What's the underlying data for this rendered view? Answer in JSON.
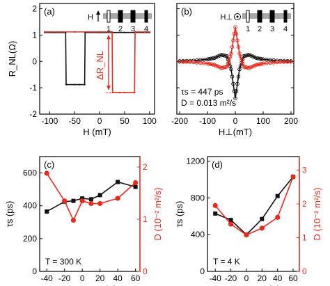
{
  "colors": {
    "black": "#111111",
    "red": "#e8291c",
    "gray": "#a8a8a8"
  },
  "chart_data": [
    {
      "type": "line",
      "panel": "(a)",
      "xlabel": "H (mT)",
      "ylabel": "R_NL(Ω)",
      "xlim": [
        -120,
        110
      ],
      "ylim": [
        -2,
        2.2
      ],
      "xticks": [
        -100,
        -50,
        0,
        50,
        100
      ],
      "yticks": [
        -2,
        -1,
        0,
        1,
        2
      ],
      "annotation": "ΔR_NL",
      "inset": {
        "field": "H",
        "contacts": [
          "1",
          "2",
          "3",
          "4"
        ]
      },
      "series": [
        {
          "color": "black",
          "x": [
            -110,
            -90,
            -68,
            -67,
            -50,
            -40,
            -30,
            -29,
            0,
            50,
            100
          ],
          "y": [
            1.1,
            1.1,
            1.1,
            -0.88,
            -0.88,
            -0.88,
            -0.88,
            1.1,
            1.1,
            1.1,
            1.1
          ]
        },
        {
          "color": "red",
          "x": [
            -110,
            -50,
            0,
            25,
            26,
            40,
            50,
            70,
            71,
            100
          ],
          "y": [
            1.12,
            1.12,
            1.12,
            1.12,
            -1.18,
            -1.18,
            -1.18,
            -1.18,
            1.12,
            1.12
          ]
        }
      ]
    },
    {
      "type": "line",
      "panel": "(b)",
      "xlabel": "H⊥(mT)",
      "xlim": [
        -210,
        210
      ],
      "ylim": [
        -2,
        2.2
      ],
      "xticks": [
        -200,
        -100,
        0,
        100,
        200
      ],
      "yticks": [
        -2,
        -1,
        0,
        1,
        2
      ],
      "notes": [
        "τs = 447 ps",
        "D = 0.013 m²/s"
      ],
      "inset": {
        "field": "H⊥",
        "contacts": [
          "1",
          "2",
          "3",
          "4"
        ]
      },
      "series": [
        {
          "color": "black",
          "x": [
            -200,
            -150,
            -100,
            -75,
            -50,
            -30,
            -15,
            0,
            15,
            30,
            50,
            75,
            100,
            150,
            200
          ],
          "y": [
            0.01,
            0.03,
            0.08,
            0.13,
            0.25,
            0.2,
            -0.3,
            -1.4,
            -0.3,
            0.2,
            0.25,
            0.13,
            0.08,
            0.03,
            0.01
          ]
        },
        {
          "color": "red",
          "x": [
            -200,
            -150,
            -100,
            -75,
            -50,
            -30,
            -15,
            0,
            15,
            30,
            50,
            75,
            100,
            150,
            200
          ],
          "y": [
            -0.01,
            -0.03,
            -0.08,
            -0.13,
            -0.25,
            -0.2,
            0.3,
            1.3,
            0.3,
            -0.2,
            -0.25,
            -0.13,
            -0.08,
            -0.03,
            -0.01
          ]
        }
      ]
    },
    {
      "type": "line",
      "panel": "(c)",
      "xlabel": "Vg-VCNP (V)",
      "ylabel": "τs (ps)",
      "ylabel_right": "D (10⁻² m²/s)",
      "xlim": [
        -48,
        65
      ],
      "ylim": [
        0,
        700
      ],
      "ylim_right": [
        0,
        2.2
      ],
      "xticks": [
        -40,
        -20,
        0,
        20,
        40,
        60
      ],
      "yticks": [
        0,
        200,
        400,
        600
      ],
      "yticks_right": [
        0,
        1,
        2
      ],
      "note": "T = 300 K",
      "series": [
        {
          "name_bind": "tau",
          "color": "black",
          "axis": "left",
          "x": [
            -40,
            -20,
            -10,
            0,
            10,
            20,
            40,
            60
          ],
          "y": [
            365,
            425,
            430,
            445,
            440,
            465,
            545,
            515
          ]
        },
        {
          "name_bind": "D",
          "color": "red",
          "axis": "right",
          "x": [
            -40,
            -20,
            -10,
            0,
            10,
            20,
            40,
            60
          ],
          "y": [
            1.88,
            1.35,
            0.98,
            1.35,
            1.3,
            1.3,
            1.4,
            1.7
          ]
        }
      ]
    },
    {
      "type": "line",
      "panel": "(d)",
      "xlabel": "Vg-VCNP (V)",
      "ylabel": "τs (ps)",
      "ylabel_right": "D (10⁻² m²/s)",
      "xlim": [
        -50,
        68
      ],
      "ylim": [
        0,
        1250
      ],
      "ylim_right": [
        0,
        3.4
      ],
      "xticks": [
        -40,
        -20,
        0,
        20,
        40,
        60
      ],
      "yticks": [
        0,
        400,
        800,
        1200
      ],
      "yticks_right": [
        0,
        1,
        2,
        3
      ],
      "note": "T = 4 K",
      "series": [
        {
          "color": "black",
          "axis": "left",
          "x": [
            -40,
            -20,
            0,
            20,
            40,
            60
          ],
          "y": [
            630,
            560,
            400,
            570,
            820,
            1030
          ]
        },
        {
          "color": "red",
          "axis": "right",
          "x": [
            -40,
            -20,
            0,
            20,
            40,
            60
          ],
          "y": [
            1.95,
            1.4,
            1.08,
            1.28,
            1.6,
            2.8
          ]
        }
      ]
    }
  ]
}
